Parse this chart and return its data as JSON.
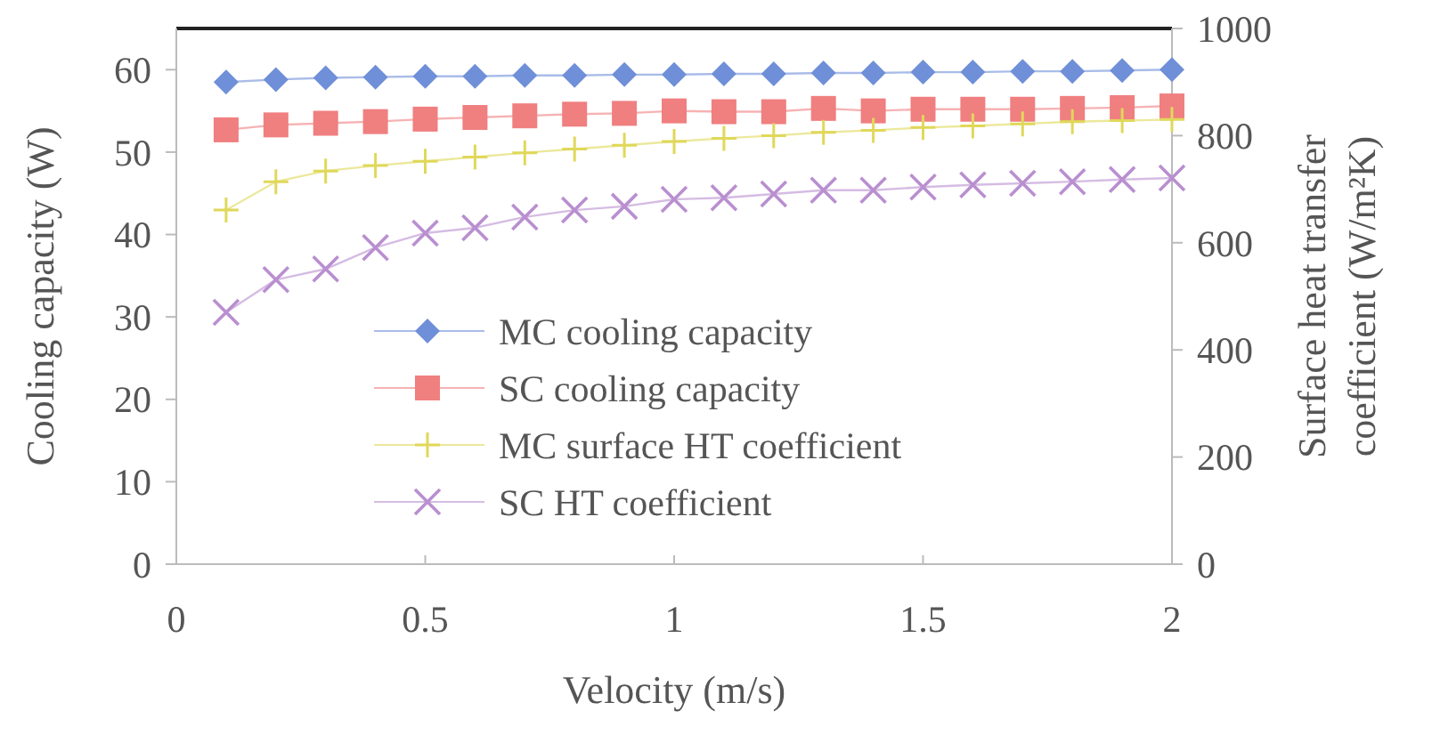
{
  "chart_data": {
    "type": "line",
    "xlabel": "Velocity (m/s)",
    "ylabel": "Cooling capacity (W)",
    "y2label": "Surface heat transfer coefficient (W/m²K)",
    "x": [
      0.1,
      0.2,
      0.3,
      0.4,
      0.5,
      0.6,
      0.7,
      0.8,
      0.9,
      1.0,
      1.1,
      1.2,
      1.3,
      1.4,
      1.5,
      1.6,
      1.7,
      1.8,
      1.9,
      2.0
    ],
    "xlim": [
      0,
      2
    ],
    "xticks": [
      0,
      0.5,
      1,
      1.5,
      2
    ],
    "ylim": [
      0,
      65
    ],
    "yticks": [
      0,
      10,
      20,
      30,
      40,
      50,
      60
    ],
    "y2lim": [
      0,
      1000
    ],
    "y2ticks": [
      0,
      200,
      400,
      600,
      800,
      1000
    ],
    "legend": "bottom",
    "grid": false,
    "series": [
      {
        "name": "MC cooling capacity",
        "color": "#6f8fd8",
        "marker": "diamond",
        "values": [
          58.5,
          58.8,
          59,
          59.1,
          59.2,
          59.2,
          59.3,
          59.3,
          59.4,
          59.4,
          59.5,
          59.5,
          59.6,
          59.6,
          59.7,
          59.7,
          59.8,
          59.8,
          59.9,
          60
        ]
      },
      {
        "name": "SC cooling capacity",
        "color": "#f07f80",
        "marker": "square",
        "values": [
          52.7,
          53.3,
          53.5,
          53.7,
          54,
          54.2,
          54.4,
          54.6,
          54.7,
          55,
          54.9,
          54.9,
          55.3,
          55,
          55.2,
          55.2,
          55.2,
          55.3,
          55.4,
          55.6
        ]
      },
      {
        "name": "MC surface HT coefficient",
        "color": "#e0d85a",
        "marker": "cross",
        "axis": "y2",
        "values": [
          661,
          714,
          734,
          744,
          752,
          760,
          768,
          775,
          782,
          789,
          795,
          800,
          806,
          810,
          815,
          818,
          822,
          826,
          828,
          830
        ]
      },
      {
        "name": "SC HT coefficient",
        "color": "#b98fd0",
        "marker": "x",
        "axis": "y2",
        "values": [
          470,
          531,
          551,
          591,
          618,
          628,
          648,
          661,
          668,
          681,
          684,
          691,
          698,
          698,
          704,
          708,
          711,
          714,
          718,
          721
        ]
      }
    ]
  }
}
